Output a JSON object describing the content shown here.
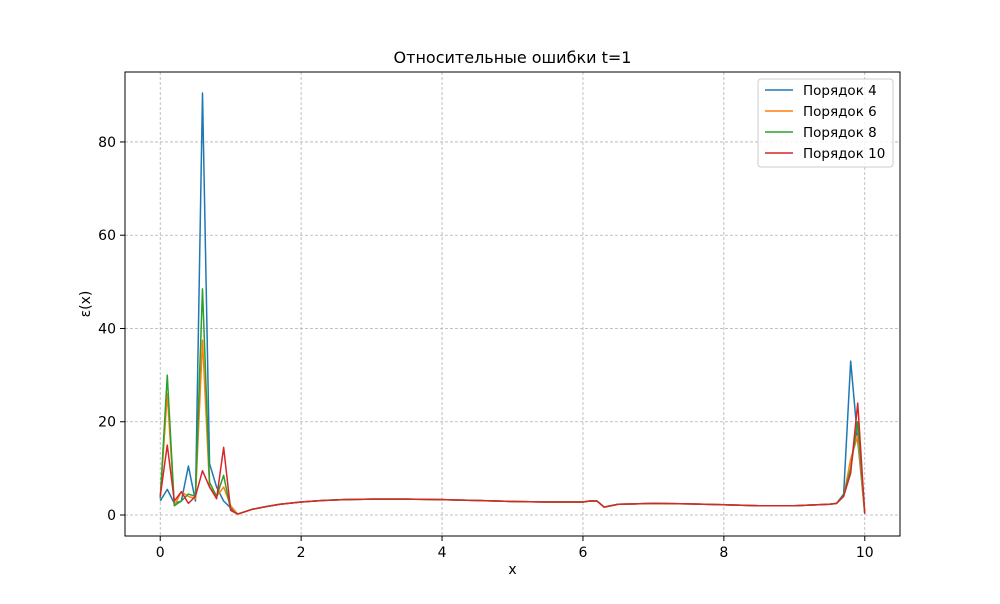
{
  "chart_data": {
    "type": "line",
    "title": "Относительные ошибки t=1",
    "xlabel": "x",
    "ylabel": "ε(x)",
    "xlim": [
      -0.5,
      10.5
    ],
    "ylim": [
      -4.5,
      95
    ],
    "xticks": [
      0,
      2,
      4,
      6,
      8,
      10
    ],
    "yticks": [
      0,
      20,
      40,
      60,
      80
    ],
    "xtick_labels": [
      "0",
      "2",
      "4",
      "6",
      "8",
      "10"
    ],
    "ytick_labels": [
      "0",
      "20",
      "40",
      "60",
      "80"
    ],
    "grid": true,
    "legend_position": "top-right",
    "x": [
      0,
      0.1,
      0.2,
      0.3,
      0.4,
      0.5,
      0.6,
      0.7,
      0.8,
      0.9,
      1.0,
      1.1,
      1.3,
      1.5,
      1.7,
      2.0,
      2.3,
      2.6,
      3.0,
      3.5,
      4.0,
      4.5,
      5.0,
      5.5,
      6.0,
      6.1,
      6.2,
      6.3,
      6.5,
      7.0,
      7.5,
      8.0,
      8.5,
      9.0,
      9.5,
      9.6,
      9.7,
      9.8,
      9.9,
      10.0
    ],
    "series": [
      {
        "name": "Порядок 4",
        "color": "#1f77b4",
        "values": [
          3.0,
          5.5,
          2.5,
          3.0,
          10.5,
          3.0,
          90.5,
          11.0,
          6.0,
          3.0,
          1.5,
          0.2,
          1.2,
          1.8,
          2.3,
          2.8,
          3.1,
          3.3,
          3.4,
          3.4,
          3.3,
          3.1,
          2.9,
          2.8,
          2.8,
          3.0,
          3.0,
          1.7,
          2.3,
          2.5,
          2.4,
          2.2,
          2.0,
          2.0,
          2.3,
          2.5,
          4.5,
          33.0,
          16.0,
          0.3
        ]
      },
      {
        "name": "Порядок 6",
        "color": "#ff7f0e",
        "values": [
          3.5,
          26.0,
          2.0,
          5.0,
          4.0,
          3.5,
          37.5,
          6.0,
          4.0,
          6.0,
          2.0,
          0.2,
          1.2,
          1.8,
          2.3,
          2.8,
          3.1,
          3.3,
          3.4,
          3.4,
          3.3,
          3.1,
          2.9,
          2.8,
          2.8,
          3.0,
          3.0,
          1.7,
          2.3,
          2.5,
          2.4,
          2.2,
          2.0,
          2.0,
          2.3,
          2.5,
          4.0,
          12.0,
          17.0,
          0.3
        ]
      },
      {
        "name": "Порядок 8",
        "color": "#2ca02c",
        "values": [
          3.5,
          30.0,
          2.0,
          3.0,
          4.5,
          4.0,
          48.5,
          7.0,
          4.0,
          8.5,
          1.0,
          0.2,
          1.2,
          1.8,
          2.3,
          2.8,
          3.1,
          3.3,
          3.4,
          3.4,
          3.3,
          3.1,
          2.9,
          2.8,
          2.8,
          3.0,
          3.0,
          1.7,
          2.3,
          2.5,
          2.4,
          2.2,
          2.0,
          2.0,
          2.3,
          2.5,
          4.2,
          10.0,
          20.0,
          0.3
        ]
      },
      {
        "name": "Порядок 10",
        "color": "#d62728",
        "values": [
          4.0,
          15.0,
          3.0,
          5.0,
          2.5,
          4.0,
          9.5,
          6.0,
          3.5,
          14.5,
          1.0,
          0.2,
          1.2,
          1.8,
          2.3,
          2.8,
          3.1,
          3.3,
          3.4,
          3.4,
          3.3,
          3.1,
          2.9,
          2.8,
          2.8,
          3.0,
          3.0,
          1.7,
          2.3,
          2.5,
          2.4,
          2.2,
          2.0,
          2.0,
          2.3,
          2.5,
          4.0,
          9.0,
          24.0,
          0.3
        ]
      }
    ]
  }
}
